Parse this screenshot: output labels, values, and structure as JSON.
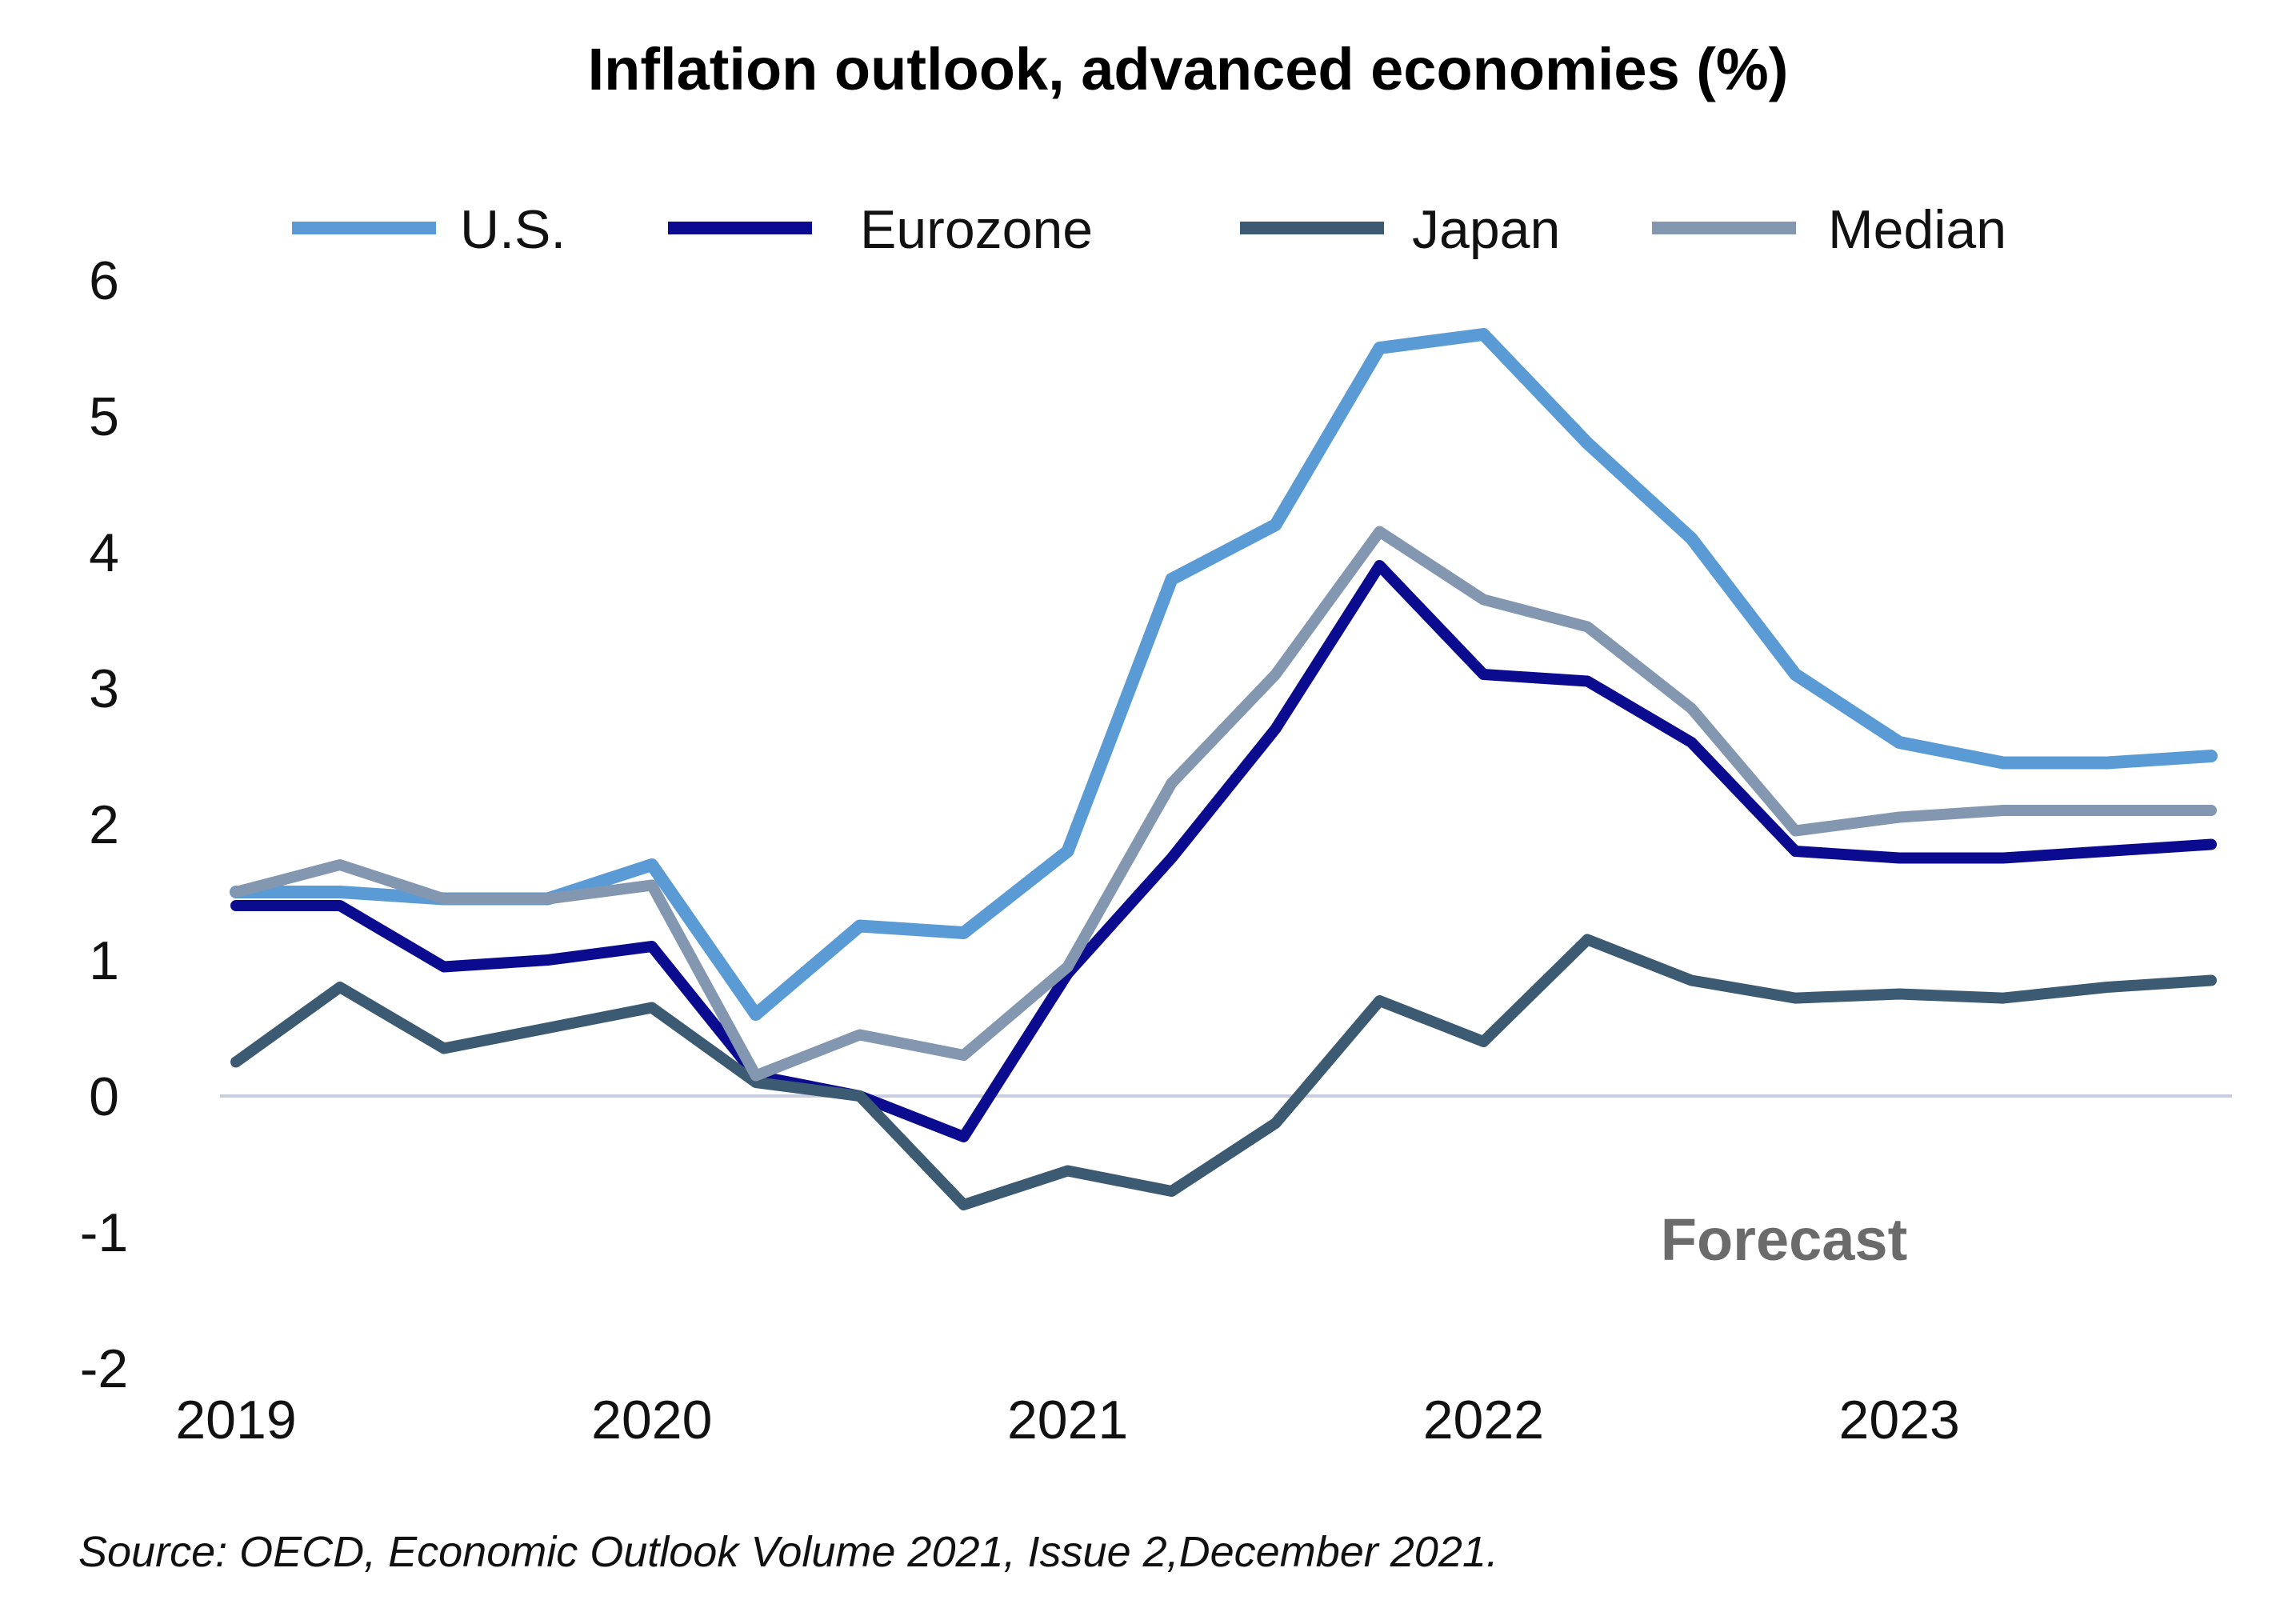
{
  "chart_data": {
    "type": "line",
    "title": "Inflation outlook, advanced economies (%)",
    "xlabel": "",
    "ylabel": "",
    "x_tick_labels": [
      "2019",
      "2020",
      "2021",
      "2022",
      "2023"
    ],
    "y_tick_labels": [
      "6",
      "5",
      "4",
      "3",
      "2",
      "1",
      "0",
      "-1",
      "-2"
    ],
    "ylim": [
      -2,
      6
    ],
    "xlim": [
      2019.0,
      2023.8
    ],
    "grid": false,
    "zero_line": true,
    "legend_position": "top",
    "annotation": "Forecast",
    "source": "Source: OECD, Economic Outlook Volume 2021, Issue 2,December 2021.",
    "x": [
      2019.0,
      2019.25,
      2019.5,
      2019.75,
      2020.0,
      2020.25,
      2020.5,
      2020.75,
      2021.0,
      2021.25,
      2021.5,
      2021.75,
      2022.0,
      2022.25,
      2022.5,
      2022.75,
      2023.0,
      2023.25,
      2023.5,
      2023.75
    ],
    "series": [
      {
        "name": "U.S.",
        "color": "#5b9bd5",
        "values": [
          1.5,
          1.5,
          1.45,
          1.45,
          1.7,
          0.6,
          1.25,
          1.2,
          1.8,
          3.8,
          4.2,
          5.5,
          5.6,
          4.8,
          4.1,
          3.1,
          2.6,
          2.45,
          2.45,
          2.5
        ]
      },
      {
        "name": "Eurozone",
        "color": "#0b0b8f",
        "values": [
          1.4,
          1.4,
          0.95,
          1.0,
          1.1,
          0.15,
          0.0,
          -0.3,
          0.9,
          1.75,
          2.7,
          3.9,
          3.1,
          3.05,
          2.6,
          1.8,
          1.75,
          1.75,
          1.8,
          1.85
        ]
      },
      {
        "name": "Japan",
        "color": "#3d5a73",
        "values": [
          0.25,
          0.8,
          0.35,
          0.5,
          0.65,
          0.1,
          0.0,
          -0.8,
          -0.55,
          -0.7,
          -0.2,
          0.7,
          0.4,
          1.15,
          0.85,
          0.72,
          0.75,
          0.72,
          0.8,
          0.85
        ]
      },
      {
        "name": "Median",
        "color": "#8497b0",
        "values": [
          1.5,
          1.7,
          1.45,
          1.45,
          1.55,
          0.15,
          0.45,
          0.3,
          0.95,
          2.3,
          3.1,
          4.15,
          3.65,
          3.45,
          2.85,
          1.95,
          2.05,
          2.1,
          2.1,
          2.1
        ]
      }
    ]
  }
}
